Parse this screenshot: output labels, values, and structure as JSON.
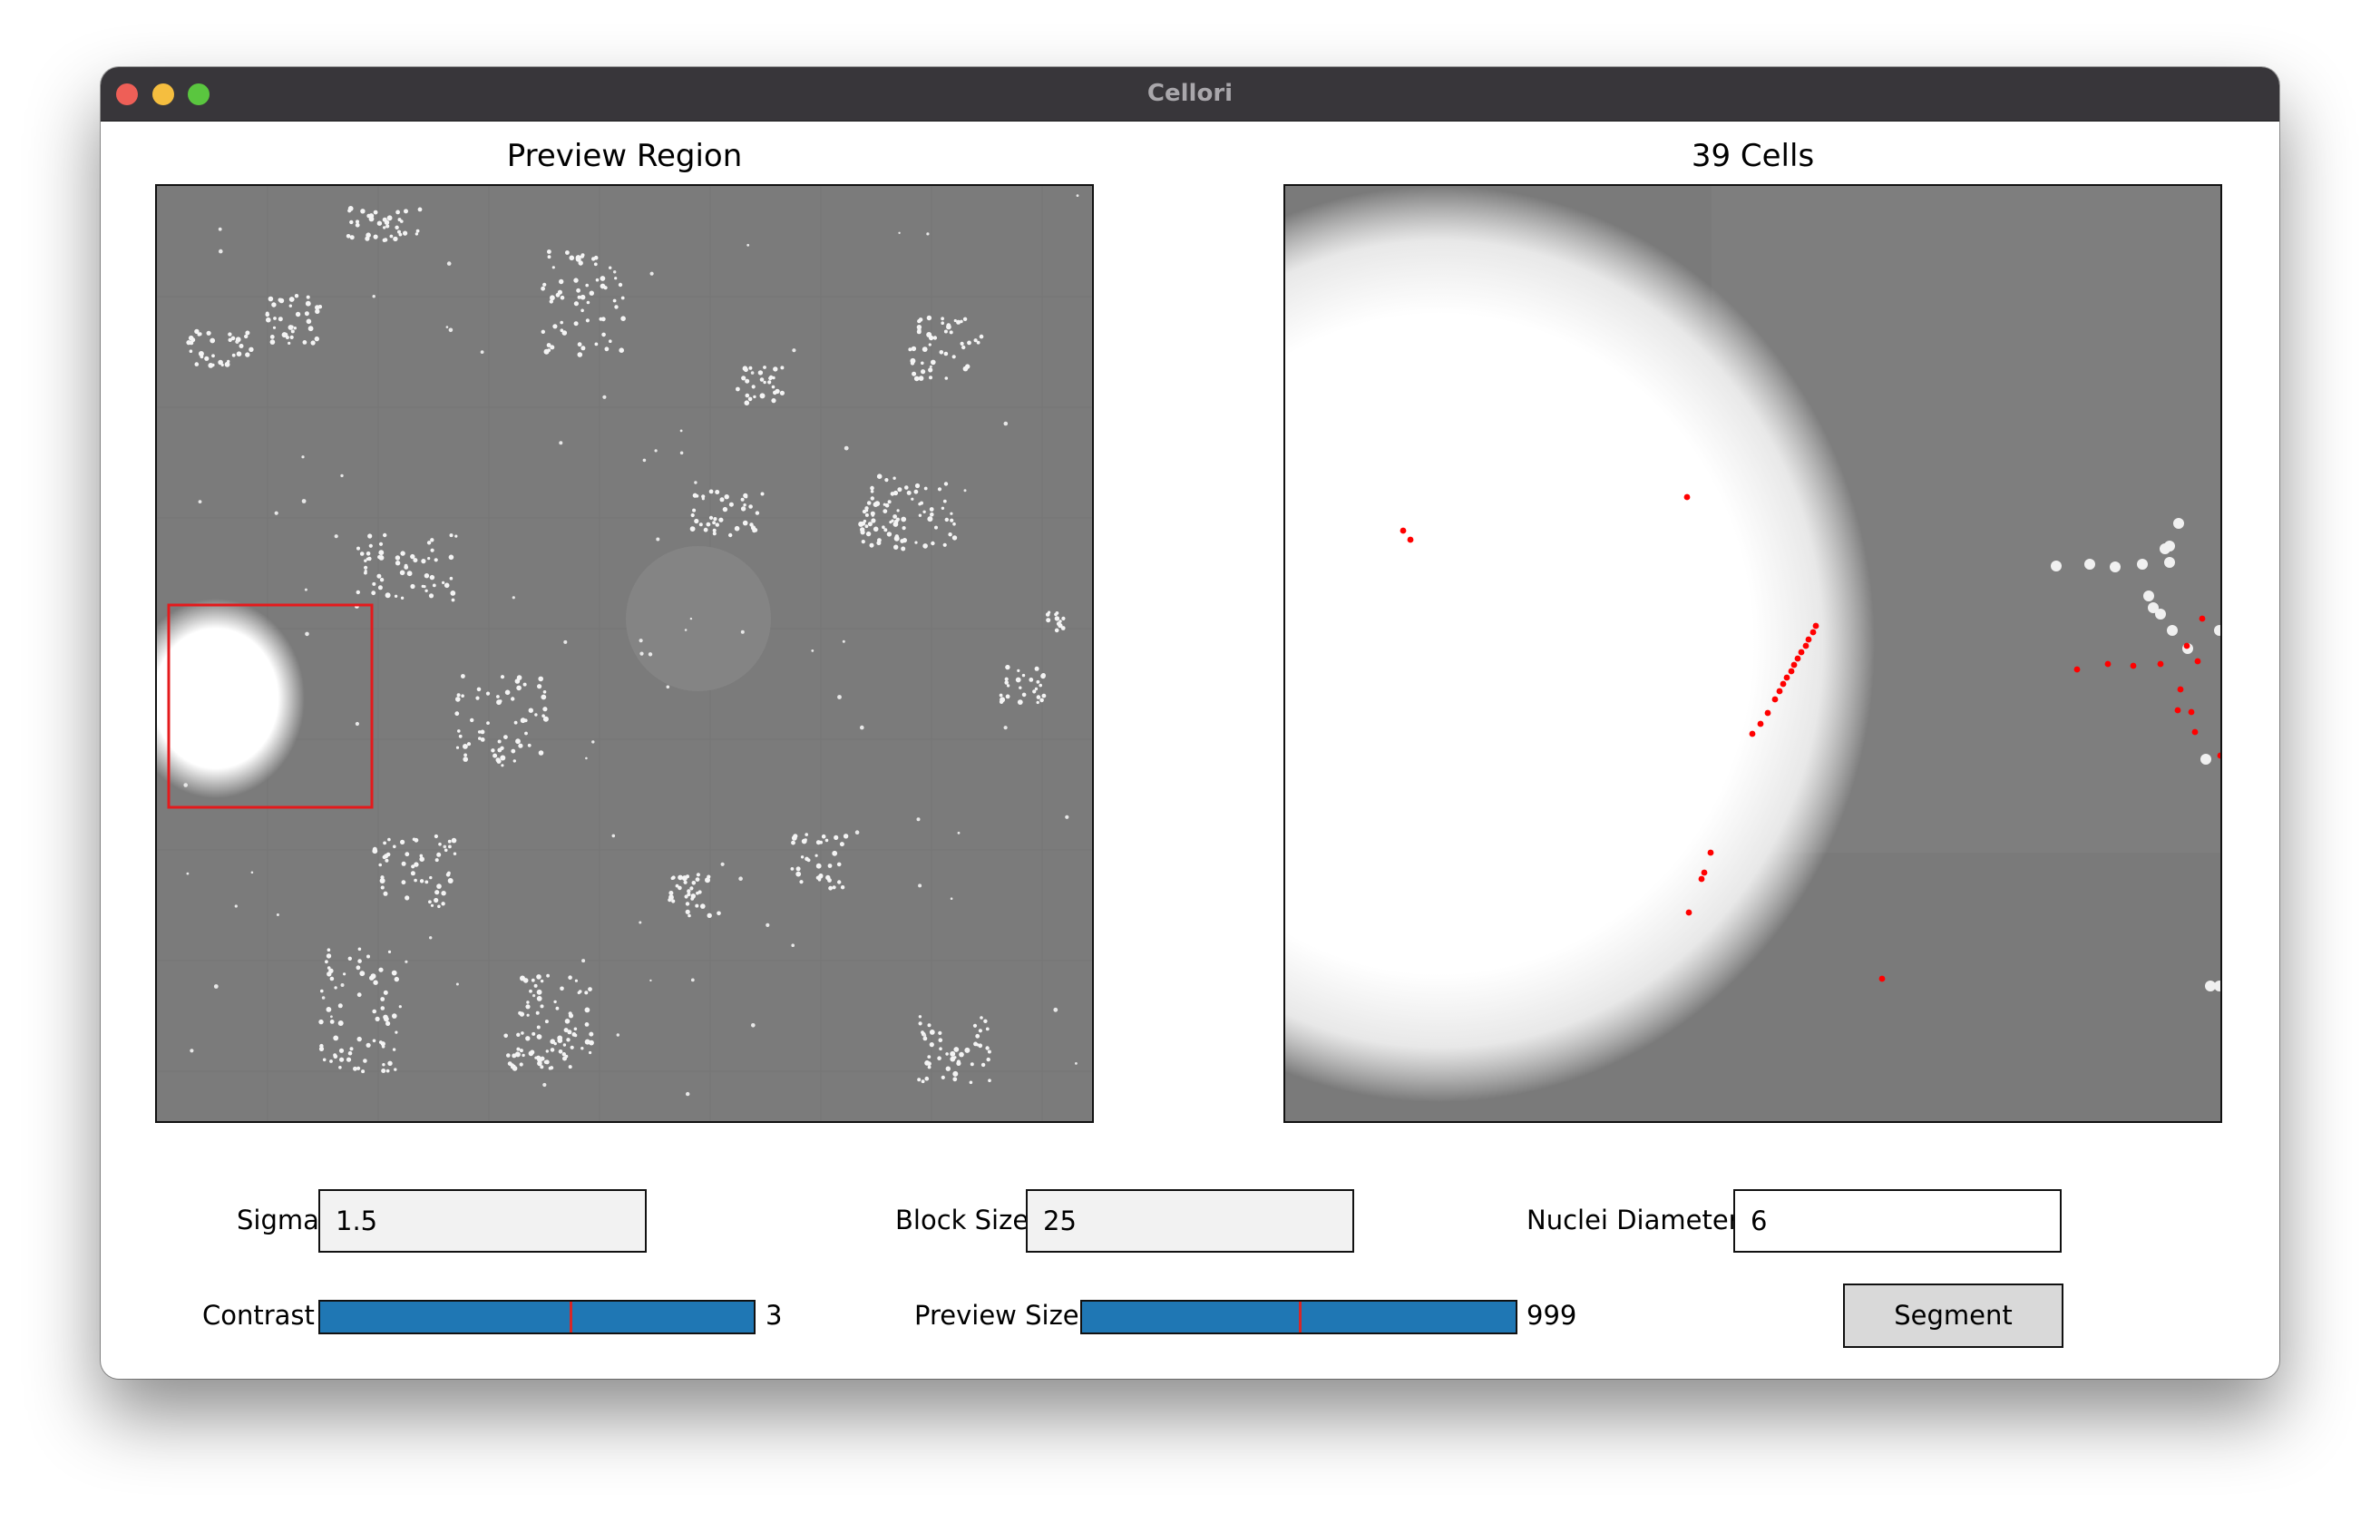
{
  "window": {
    "title": "Cellori"
  },
  "left_panel": {
    "title": "Preview Region"
  },
  "right_panel": {
    "title": "39 Cells"
  },
  "controls": {
    "sigma": {
      "label": "Sigma",
      "value": "1.5"
    },
    "block_size": {
      "label": "Block Size",
      "value": "25"
    },
    "nuclei_diameter": {
      "label": "Nuclei Diameter",
      "value": "6"
    },
    "contrast": {
      "label": "Contrast",
      "value_text": "3",
      "fill_fraction": 1.0,
      "handle_fraction": 0.575
    },
    "preview_size": {
      "label": "Preview Size",
      "value_text": "999",
      "fill_fraction": 1.0,
      "handle_fraction": 0.5
    },
    "segment": {
      "label": "Segment"
    }
  },
  "colors": {
    "slider_fill": "#1f77b4",
    "slider_handle": "#d62728",
    "roi_box": "#e41a1c",
    "cell_marker": "#ff0000",
    "image_background": "#7a7a7a"
  }
}
